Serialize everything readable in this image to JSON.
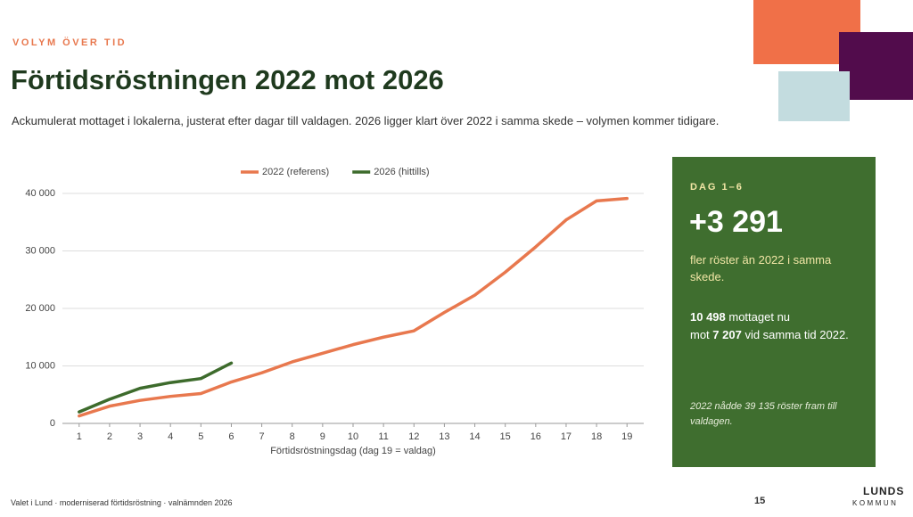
{
  "header": {
    "kicker": "VOLYM ÖVER TID",
    "title": "Förtidsröstningen 2022 mot 2026",
    "subtitle": "Ackumulerat mottaget i lokalerna, justerat efter dagar till valdagen. 2026 ligger klart över 2022 i samma skede – volymen kommer tidigare."
  },
  "chart_data": {
    "type": "line",
    "x": [
      1,
      2,
      3,
      4,
      5,
      6,
      7,
      8,
      9,
      10,
      11,
      12,
      13,
      14,
      15,
      16,
      17,
      18,
      19
    ],
    "xlim": [
      0.45,
      19.55
    ],
    "xticks": [
      1,
      2,
      3,
      4,
      5,
      6,
      7,
      8,
      9,
      10,
      11,
      12,
      13,
      14,
      15,
      16,
      17,
      18,
      19
    ],
    "x_label": "Förtidsröstningsdag (dag 19 = valdag)",
    "ylim": [
      0,
      40000
    ],
    "yticks": [
      {
        "value": 0,
        "label": "0"
      },
      {
        "value": 10000,
        "label": "10 000"
      },
      {
        "value": 20000,
        "label": "20 000"
      },
      {
        "value": 30000,
        "label": "30 000"
      },
      {
        "value": 40000,
        "label": "40 000"
      }
    ],
    "grid": true,
    "legend": "top",
    "series": [
      {
        "name": "2022 (referens)",
        "color": "#e8784e",
        "values": [
          1300,
          3000,
          4000,
          4700,
          5200,
          7207,
          8800,
          10700,
          12200,
          13700,
          15000,
          16100,
          19300,
          22300,
          26300,
          30700,
          35400,
          38700,
          39135
        ]
      },
      {
        "name": "2026 (hittills)",
        "color": "#3d6b2c",
        "values": [
          2000,
          4200,
          6100,
          7100,
          7800,
          10498,
          null,
          null,
          null,
          null,
          null,
          null,
          null,
          null,
          null,
          null,
          null,
          null,
          null
        ]
      }
    ]
  },
  "card": {
    "kicker": "DAG 1–6",
    "big": "+3 291",
    "lead": "fler röster än 2022 i samma skede.",
    "detail": [
      "10 498",
      " mottaget nu",
      "mot ",
      "7 207",
      " vid samma tid 2022."
    ],
    "note": "2022 nådde 39 135 röster fram till valdagen."
  },
  "footer": {
    "source": "Valet i Lund · moderniserad förtidsröstning · valnämnden 2026",
    "page": "15",
    "logo_top": "LUNDS",
    "logo_bottom": "KOMMUN"
  }
}
